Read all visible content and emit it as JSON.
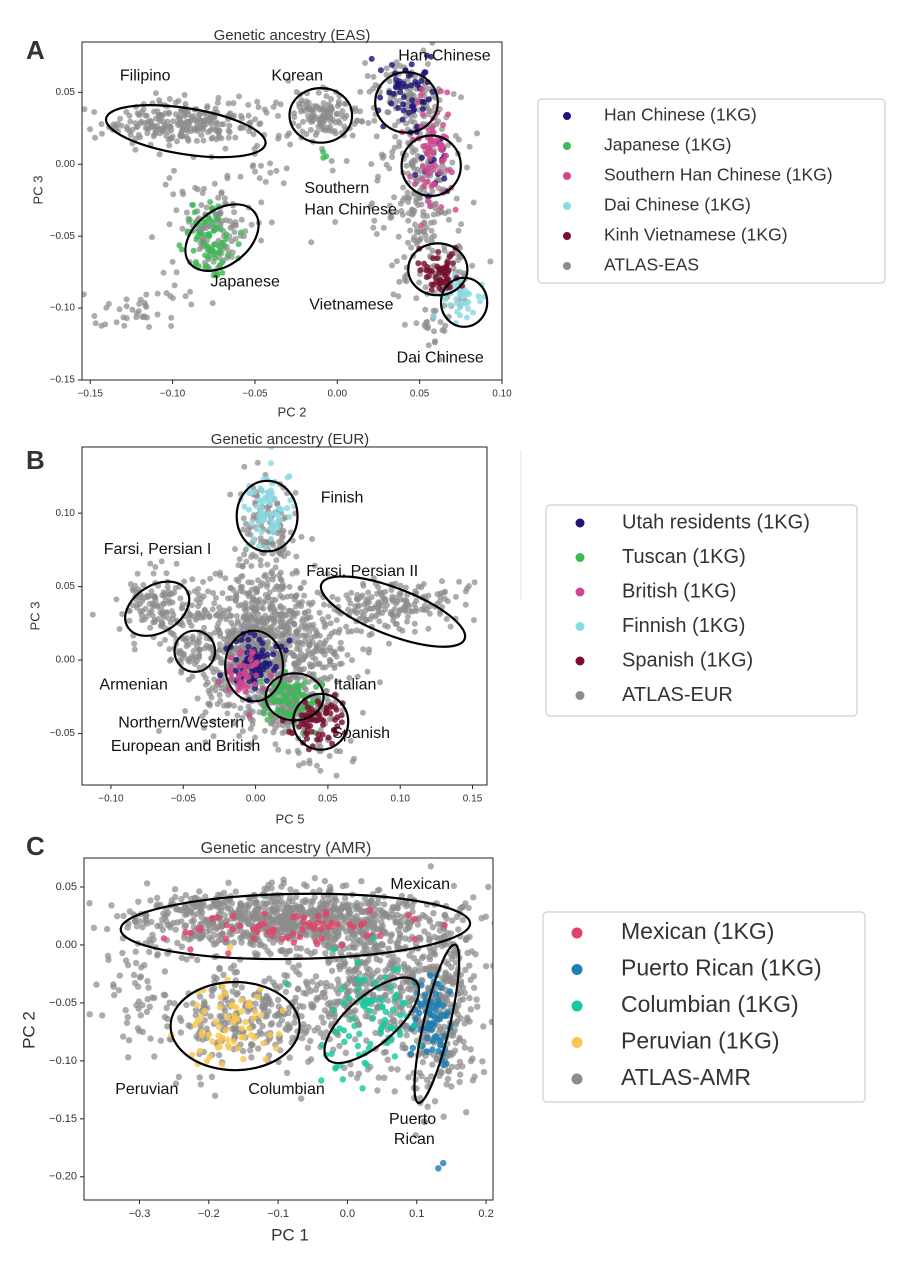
{
  "chart_data": [
    {
      "panel_letter": "A",
      "type": "scatter",
      "title": "Genetic ancestry (EAS)",
      "xlabel": "PC 2",
      "ylabel": "PC 3",
      "xlim": [
        -0.155,
        0.1
      ],
      "ylim": [
        -0.15,
        0.085
      ],
      "xticks": [
        -0.15,
        -0.1,
        -0.05,
        0.0,
        0.05,
        0.1
      ],
      "xtick_labels": [
        "−0.15",
        "−0.10",
        "−0.05",
        "0.00",
        "0.05",
        "0.10"
      ],
      "yticks": [
        0.05,
        0.0,
        -0.05,
        -0.1,
        -0.15
      ],
      "ytick_labels": [
        "0.05",
        "0.00",
        "−0.05",
        "−0.10",
        "−0.15"
      ],
      "legend": "right",
      "series": [
        {
          "name": "Han Chinese (1KG)",
          "color": "#1f1578",
          "clusters": [
            {
              "cx": 0.041,
              "cy": 0.05,
              "sx": 0.009,
              "sy": 0.012,
              "n": 55
            },
            {
              "cx": 0.057,
              "cy": 0.0,
              "sx": 0.006,
              "sy": 0.01,
              "n": 15
            }
          ]
        },
        {
          "name": "Japanese (1KG)",
          "color": "#3cba54",
          "clusters": [
            {
              "cx": -0.077,
              "cy": -0.053,
              "sx": 0.009,
              "sy": 0.011,
              "n": 65
            },
            {
              "cx": -0.005,
              "cy": 0.008,
              "sx": 0.004,
              "sy": 0.003,
              "n": 3
            }
          ]
        },
        {
          "name": "Southern Han Chinese (1KG)",
          "color": "#d1478f",
          "clusters": [
            {
              "cx": 0.057,
              "cy": 0.007,
              "sx": 0.007,
              "sy": 0.019,
              "n": 70
            }
          ]
        },
        {
          "name": "Dai Chinese (1KG)",
          "color": "#8ad9e4",
          "clusters": [
            {
              "cx": 0.074,
              "cy": -0.092,
              "sx": 0.007,
              "sy": 0.008,
              "n": 45
            }
          ]
        },
        {
          "name": "Kinh Vietnamese (1KG)",
          "color": "#7a0f2d",
          "clusters": [
            {
              "cx": 0.063,
              "cy": -0.075,
              "sx": 0.007,
              "sy": 0.007,
              "n": 55
            }
          ]
        },
        {
          "name": "ATLAS-EAS",
          "color": "#8c8c8c",
          "clusters": [
            {
              "cx": -0.095,
              "cy": 0.028,
              "sx": 0.024,
              "sy": 0.008,
              "n": 260
            },
            {
              "cx": -0.01,
              "cy": 0.035,
              "sx": 0.01,
              "sy": 0.009,
              "n": 120
            },
            {
              "cx": -0.072,
              "cy": -0.047,
              "sx": 0.011,
              "sy": 0.012,
              "n": 100
            },
            {
              "cx": 0.042,
              "cy": 0.05,
              "sx": 0.011,
              "sy": 0.013,
              "n": 90
            },
            {
              "cx": 0.052,
              "cy": -0.005,
              "sx": 0.01,
              "sy": 0.028,
              "n": 200
            },
            {
              "cx": 0.06,
              "cy": -0.075,
              "sx": 0.012,
              "sy": 0.014,
              "n": 70
            },
            {
              "cx": 0.058,
              "cy": -0.11,
              "sx": 0.006,
              "sy": 0.013,
              "n": 25
            },
            {
              "cx": -0.125,
              "cy": -0.105,
              "sx": 0.012,
              "sy": 0.008,
              "n": 30
            },
            {
              "cx": -0.08,
              "cy": -0.02,
              "sx": 0.015,
              "sy": 0.018,
              "n": 30
            },
            {
              "cx": 0.02,
              "cy": 0.01,
              "sx": 0.02,
              "sy": 0.025,
              "n": 40
            },
            {
              "cx": -0.035,
              "cy": -0.01,
              "sx": 0.02,
              "sy": 0.02,
              "n": 25
            },
            {
              "cx": -0.1,
              "cy": -0.085,
              "sx": 0.01,
              "sy": 0.01,
              "n": 15
            }
          ]
        }
      ],
      "ellipses": [
        {
          "cx": -0.092,
          "cy": 0.023,
          "rx": 0.049,
          "ry": 0.016,
          "rot": 9
        },
        {
          "cx": -0.01,
          "cy": 0.034,
          "rx": 0.019,
          "ry": 0.019,
          "rot": 0
        },
        {
          "cx": -0.07,
          "cy": -0.051,
          "rx": 0.025,
          "ry": 0.019,
          "rot": -38
        },
        {
          "cx": 0.042,
          "cy": 0.043,
          "rx": 0.019,
          "ry": 0.021,
          "rot": 0
        },
        {
          "cx": 0.057,
          "cy": -0.001,
          "rx": 0.018,
          "ry": 0.021,
          "rot": 0
        },
        {
          "cx": 0.061,
          "cy": -0.073,
          "rx": 0.018,
          "ry": 0.018,
          "rot": 0
        },
        {
          "cx": 0.077,
          "cy": -0.096,
          "rx": 0.014,
          "ry": 0.017,
          "rot": 0
        }
      ],
      "annotations": [
        {
          "text": "Han Chinese",
          "x": 0.037,
          "y": 0.075
        },
        {
          "text": "Filipino",
          "x": -0.132,
          "y": 0.061
        },
        {
          "text": "Korean",
          "x": -0.04,
          "y": 0.061
        },
        {
          "text": "Southern",
          "x": -0.02,
          "y": -0.017
        },
        {
          "text": "Han Chinese",
          "x": -0.02,
          "y": -0.032
        },
        {
          "text": "Japanese",
          "x": -0.077,
          "y": -0.082
        },
        {
          "text": "Vietnamese",
          "x": -0.017,
          "y": -0.098
        },
        {
          "text": "Dai Chinese",
          "x": 0.036,
          "y": -0.135
        }
      ]
    },
    {
      "panel_letter": "B",
      "type": "scatter",
      "title": "Genetic ancestry (EUR)",
      "xlabel": "PC 5",
      "ylabel": "PC 3",
      "xlim": [
        -0.12,
        0.16
      ],
      "ylim": [
        -0.085,
        0.145
      ],
      "xticks": [
        -0.1,
        -0.05,
        0.0,
        0.05,
        0.1,
        0.15
      ],
      "xtick_labels": [
        "−0.10",
        "−0.05",
        "0.00",
        "0.05",
        "0.10",
        "0.15"
      ],
      "yticks": [
        0.1,
        0.05,
        0.0,
        -0.05
      ],
      "ytick_labels": [
        "0.10",
        "0.05",
        "0.00",
        "−0.05"
      ],
      "legend": "right",
      "series": [
        {
          "name": "Utah residents (1KG)",
          "color": "#1f1578",
          "clusters": [
            {
              "cx": 0.0,
              "cy": -0.003,
              "sx": 0.008,
              "sy": 0.01,
              "n": 75
            }
          ]
        },
        {
          "name": "Tuscan (1KG)",
          "color": "#3cba54",
          "clusters": [
            {
              "cx": 0.025,
              "cy": -0.027,
              "sx": 0.009,
              "sy": 0.008,
              "n": 75
            }
          ]
        },
        {
          "name": "British (1KG)",
          "color": "#d1478f",
          "clusters": [
            {
              "cx": -0.007,
              "cy": -0.01,
              "sx": 0.008,
              "sy": 0.009,
              "n": 40
            }
          ]
        },
        {
          "name": "Finnish (1KG)",
          "color": "#8ad9e4",
          "clusters": [
            {
              "cx": 0.008,
              "cy": 0.102,
              "sx": 0.009,
              "sy": 0.015,
              "n": 70
            }
          ]
        },
        {
          "name": "Spanish (1KG)",
          "color": "#7a0f2d",
          "clusters": [
            {
              "cx": 0.043,
              "cy": -0.045,
              "sx": 0.009,
              "sy": 0.009,
              "n": 65
            }
          ]
        },
        {
          "name": "ATLAS-EUR",
          "color": "#8c8c8c",
          "clusters": [
            {
              "cx": 0.005,
              "cy": 0.0,
              "sx": 0.022,
              "sy": 0.022,
              "n": 700
            },
            {
              "cx": 0.0,
              "cy": 0.03,
              "sx": 0.016,
              "sy": 0.02,
              "n": 200
            },
            {
              "cx": 0.008,
              "cy": 0.09,
              "sx": 0.01,
              "sy": 0.018,
              "n": 120
            },
            {
              "cx": -0.068,
              "cy": 0.037,
              "sx": 0.014,
              "sy": 0.011,
              "n": 130
            },
            {
              "cx": -0.042,
              "cy": 0.008,
              "sx": 0.009,
              "sy": 0.008,
              "n": 40
            },
            {
              "cx": 0.095,
              "cy": 0.036,
              "sx": 0.028,
              "sy": 0.008,
              "n": 180
            },
            {
              "cx": 0.03,
              "cy": -0.03,
              "sx": 0.014,
              "sy": 0.012,
              "n": 150
            },
            {
              "cx": 0.045,
              "cy": 0.01,
              "sx": 0.02,
              "sy": 0.012,
              "n": 60
            },
            {
              "cx": -0.03,
              "cy": 0.02,
              "sx": 0.018,
              "sy": 0.015,
              "n": 60
            },
            {
              "cx": 0.045,
              "cy": -0.06,
              "sx": 0.012,
              "sy": 0.008,
              "n": 25
            }
          ]
        }
      ],
      "ellipses": [
        {
          "cx": 0.008,
          "cy": 0.098,
          "rx": 0.021,
          "ry": 0.024,
          "rot": 0
        },
        {
          "cx": -0.068,
          "cy": 0.035,
          "rx": 0.024,
          "ry": 0.016,
          "rot": -32
        },
        {
          "cx": -0.042,
          "cy": 0.006,
          "rx": 0.014,
          "ry": 0.014,
          "rot": 0
        },
        {
          "cx": 0.095,
          "cy": 0.033,
          "rx": 0.053,
          "ry": 0.016,
          "rot": 21
        },
        {
          "cx": -0.001,
          "cy": -0.004,
          "rx": 0.02,
          "ry": 0.024,
          "rot": 0
        },
        {
          "cx": 0.027,
          "cy": -0.025,
          "rx": 0.02,
          "ry": 0.016,
          "rot": 0
        },
        {
          "cx": 0.045,
          "cy": -0.042,
          "rx": 0.019,
          "ry": 0.019,
          "rot": 0
        }
      ],
      "annotations": [
        {
          "text": "Finish",
          "x": 0.045,
          "y": 0.11
        },
        {
          "text": "Farsi, Persian I",
          "x": -0.105,
          "y": 0.075
        },
        {
          "text": "Farsi, Persian II",
          "x": 0.035,
          "y": 0.06
        },
        {
          "text": "Armenian",
          "x": -0.108,
          "y": -0.017
        },
        {
          "text": "Italian",
          "x": 0.054,
          "y": -0.017
        },
        {
          "text": "Northern/Western",
          "x": -0.095,
          "y": -0.043
        },
        {
          "text": "European and British",
          "x": -0.1,
          "y": -0.059
        },
        {
          "text": "Spanish",
          "x": 0.053,
          "y": -0.05
        }
      ]
    },
    {
      "panel_letter": "C",
      "type": "scatter",
      "title": "Genetic ancestry (AMR)",
      "xlabel": "PC 1",
      "ylabel": "PC 2",
      "xlim": [
        -0.38,
        0.21
      ],
      "ylim": [
        -0.22,
        0.075
      ],
      "xticks": [
        -0.3,
        -0.2,
        -0.1,
        0.0,
        0.1,
        0.2
      ],
      "xtick_labels": [
        "−0.3",
        "−0.2",
        "−0.1",
        "0.0",
        "0.1",
        "0.2"
      ],
      "yticks": [
        0.05,
        0.0,
        -0.05,
        -0.1,
        -0.15,
        -0.2
      ],
      "ytick_labels": [
        "0.05",
        "0.00",
        "−0.05",
        "−0.10",
        "−0.15",
        "−0.20"
      ],
      "legend": "right",
      "series": [
        {
          "name": "Mexican (1KG)",
          "color": "#e0446a",
          "clusters": [
            {
              "cx": -0.07,
              "cy": 0.014,
              "sx": 0.085,
              "sy": 0.008,
              "n": 65
            }
          ]
        },
        {
          "name": "Puerto Rican (1KG)",
          "color": "#1d7fb4",
          "clusters": [
            {
              "cx": 0.12,
              "cy": -0.065,
              "sx": 0.015,
              "sy": 0.022,
              "n": 75
            },
            {
              "cx": 0.137,
              "cy": -0.197,
              "sx": 0.006,
              "sy": 0.006,
              "n": 2
            }
          ]
        },
        {
          "name": "Columbian (1KG)",
          "color": "#17c9a0",
          "clusters": [
            {
              "cx": 0.03,
              "cy": -0.06,
              "sx": 0.04,
              "sy": 0.025,
              "n": 80
            }
          ]
        },
        {
          "name": "Peruvian (1KG)",
          "color": "#f9c74f",
          "clusters": [
            {
              "cx": -0.17,
              "cy": -0.067,
              "sx": 0.035,
              "sy": 0.018,
              "n": 70
            }
          ]
        },
        {
          "name": "ATLAS-AMR",
          "color": "#8c8c8c",
          "clusters": [
            {
              "cx": -0.08,
              "cy": 0.022,
              "sx": 0.11,
              "sy": 0.013,
              "n": 900
            },
            {
              "cx": 0.05,
              "cy": -0.03,
              "sx": 0.06,
              "sy": 0.025,
              "n": 350
            },
            {
              "cx": -0.16,
              "cy": -0.06,
              "sx": 0.045,
              "sy": 0.022,
              "n": 200
            },
            {
              "cx": 0.14,
              "cy": -0.06,
              "sx": 0.025,
              "sy": 0.04,
              "n": 250
            },
            {
              "cx": -0.05,
              "cy": -0.07,
              "sx": 0.05,
              "sy": 0.02,
              "n": 100
            },
            {
              "cx": -0.3,
              "cy": -0.04,
              "sx": 0.03,
              "sy": 0.025,
              "n": 60
            },
            {
              "cx": 0.08,
              "cy": -0.1,
              "sx": 0.03,
              "sy": 0.02,
              "n": 50
            }
          ]
        }
      ],
      "ellipses": [
        {
          "cx": -0.075,
          "cy": 0.016,
          "rx": 0.252,
          "ry": 0.028,
          "rot": -1
        },
        {
          "cx": -0.162,
          "cy": -0.07,
          "rx": 0.093,
          "ry": 0.038,
          "rot": 0
        },
        {
          "cx": 0.035,
          "cy": -0.065,
          "rx": 0.085,
          "ry": 0.021,
          "rot": -41
        },
        {
          "cx": 0.129,
          "cy": -0.068,
          "rx": 0.019,
          "ry": 0.07,
          "rot": 13
        }
      ],
      "annotations": [
        {
          "text": "Mexican",
          "x": 0.062,
          "y": 0.052
        },
        {
          "text": "Peruvian",
          "x": -0.335,
          "y": -0.125
        },
        {
          "text": "Columbian",
          "x": -0.143,
          "y": -0.125
        },
        {
          "text": "Puerto",
          "x": 0.06,
          "y": -0.151
        },
        {
          "text": "Rican",
          "x": 0.067,
          "y": -0.168
        }
      ]
    }
  ]
}
